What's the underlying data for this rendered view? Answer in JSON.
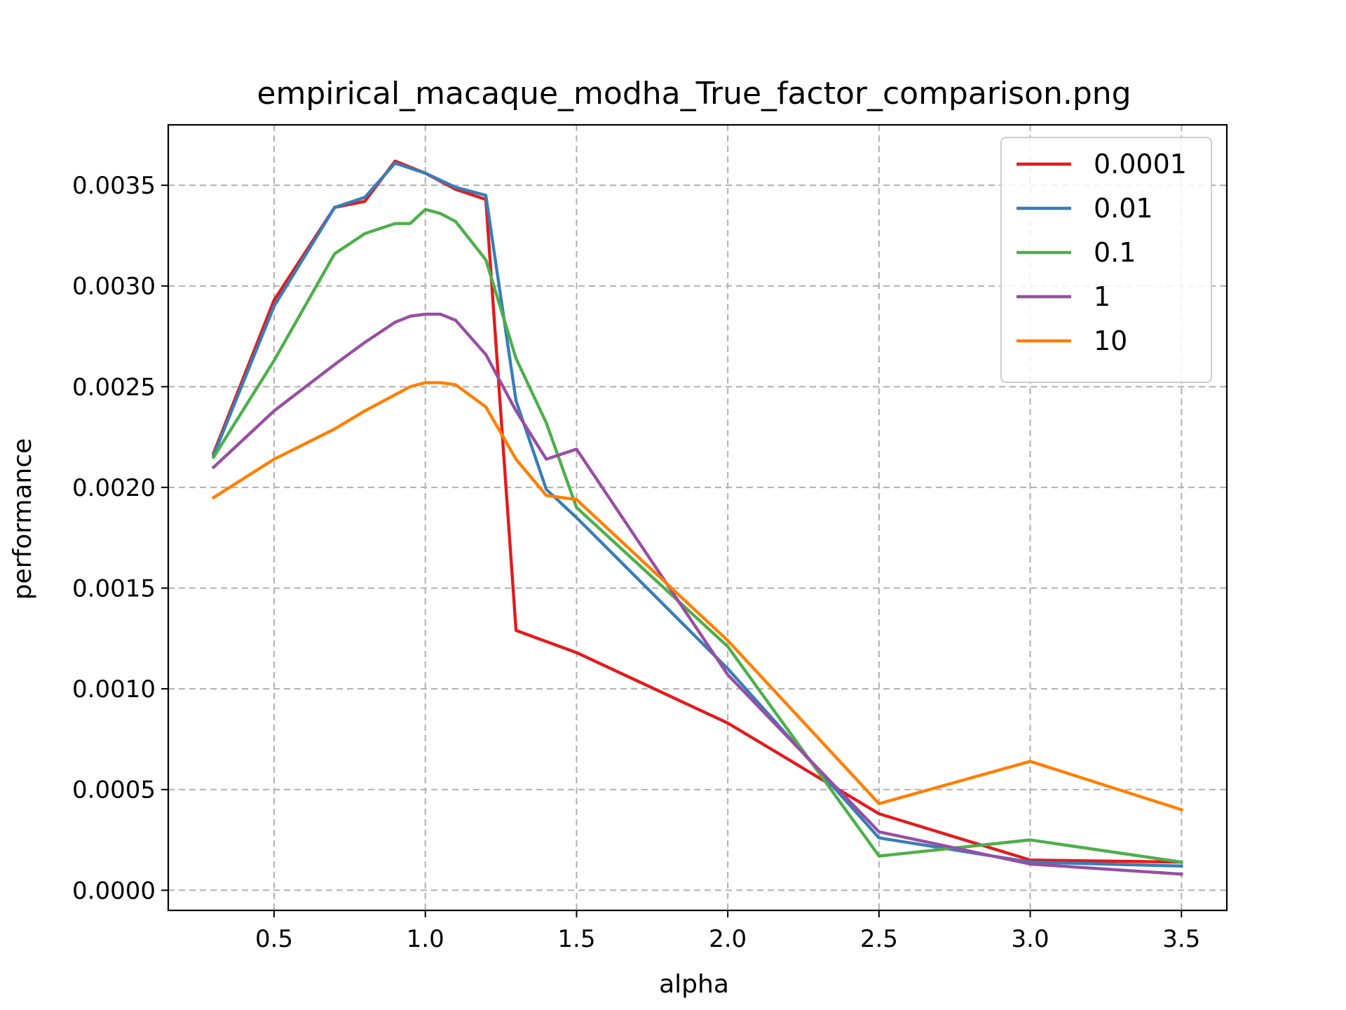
{
  "chart_data": {
    "type": "line",
    "title": "empirical_macaque_modha_True_factor_comparison.png",
    "xlabel": "alpha",
    "ylabel": "performance",
    "xlim": [
      0.15,
      3.65
    ],
    "ylim": [
      -0.0001,
      0.0038
    ],
    "xticks": [
      0.5,
      1.0,
      1.5,
      2.0,
      2.5,
      3.0,
      3.5
    ],
    "xtick_labels": [
      "0.5",
      "1.0",
      "1.5",
      "2.0",
      "2.5",
      "3.0",
      "3.5"
    ],
    "yticks": [
      0.0,
      0.0005,
      0.001,
      0.0015,
      0.002,
      0.0025,
      0.003,
      0.0035
    ],
    "ytick_labels": [
      "0.0000",
      "0.0005",
      "0.0010",
      "0.0015",
      "0.0020",
      "0.0025",
      "0.0030",
      "0.0035"
    ],
    "grid": true,
    "legend_position": "top-right",
    "series": [
      {
        "name": "0.0001",
        "color": "#e41a1c",
        "x": [
          0.3,
          0.5,
          0.7,
          0.8,
          0.9,
          1.0,
          1.1,
          1.2,
          1.3,
          1.5,
          2.0,
          2.5,
          3.0,
          3.5
        ],
        "y": [
          0.00217,
          0.00293,
          0.00339,
          0.00342,
          0.00362,
          0.00356,
          0.00348,
          0.00343,
          0.00129,
          0.00118,
          0.00083,
          0.00038,
          0.00015,
          0.00014
        ]
      },
      {
        "name": "0.01",
        "color": "#377eb8",
        "x": [
          0.3,
          0.5,
          0.7,
          0.8,
          0.9,
          1.0,
          1.1,
          1.2,
          1.3,
          1.4,
          1.5,
          2.0,
          2.5,
          3.0,
          3.5
        ],
        "y": [
          0.00216,
          0.0029,
          0.00339,
          0.00344,
          0.00361,
          0.00356,
          0.00349,
          0.00345,
          0.00243,
          0.00199,
          0.00185,
          0.0011,
          0.00026,
          0.00014,
          0.00012
        ]
      },
      {
        "name": "0.1",
        "color": "#4daf4a",
        "x": [
          0.3,
          0.5,
          0.7,
          0.8,
          0.9,
          0.95,
          1.0,
          1.05,
          1.1,
          1.2,
          1.3,
          1.4,
          1.5,
          2.0,
          2.5,
          3.0,
          3.5
        ],
        "y": [
          0.00215,
          0.00263,
          0.00316,
          0.00326,
          0.00331,
          0.00331,
          0.00338,
          0.00336,
          0.00332,
          0.00313,
          0.00264,
          0.00232,
          0.0019,
          0.00121,
          0.00017,
          0.00025,
          0.00014
        ]
      },
      {
        "name": "1",
        "color": "#984ea3",
        "x": [
          0.3,
          0.5,
          0.7,
          0.8,
          0.9,
          0.95,
          1.0,
          1.05,
          1.1,
          1.2,
          1.3,
          1.4,
          1.5,
          2.0,
          2.5,
          3.0,
          3.5
        ],
        "y": [
          0.0021,
          0.00238,
          0.00261,
          0.00272,
          0.00282,
          0.00285,
          0.00286,
          0.00286,
          0.00283,
          0.00266,
          0.00238,
          0.00214,
          0.00219,
          0.00107,
          0.00029,
          0.00013,
          8e-05
        ]
      },
      {
        "name": "10",
        "color": "#ff7f00",
        "x": [
          0.3,
          0.5,
          0.7,
          0.8,
          0.9,
          0.95,
          1.0,
          1.05,
          1.1,
          1.2,
          1.3,
          1.4,
          1.45,
          1.5,
          2.0,
          2.5,
          3.0,
          3.5
        ],
        "y": [
          0.00195,
          0.00214,
          0.00229,
          0.00238,
          0.00246,
          0.0025,
          0.00252,
          0.00252,
          0.00251,
          0.0024,
          0.00214,
          0.00196,
          0.00195,
          0.00194,
          0.00124,
          0.00043,
          0.00064,
          0.0004
        ]
      }
    ]
  }
}
